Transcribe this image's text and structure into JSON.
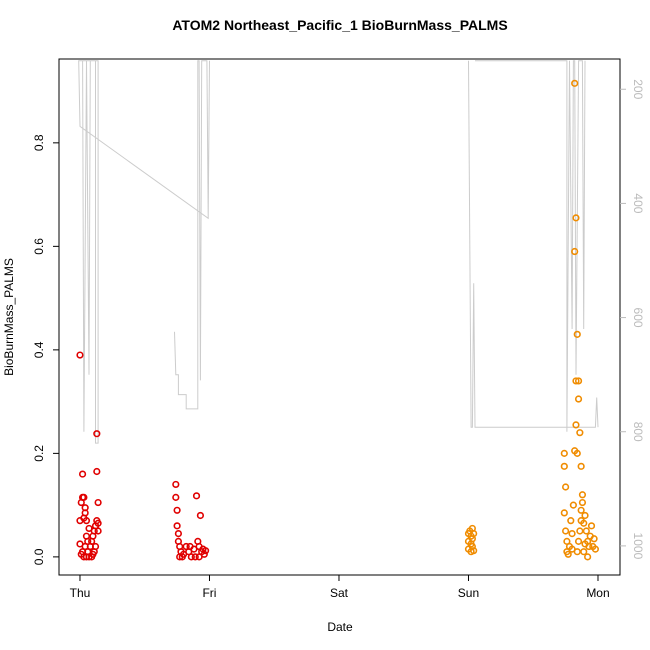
{
  "chart_data": {
    "type": "scatter",
    "title": "ATOM2 Northeast_Pacific_1 BioBurnMass_PALMS",
    "x_label": "Date",
    "y_label": "BioBurnMass_PALMS",
    "xlim": [
      -0.162,
      4.17
    ],
    "xticks": [
      {
        "value": 0,
        "label": "Thu"
      },
      {
        "value": 1,
        "label": "Fri"
      },
      {
        "value": 2,
        "label": "Sat"
      },
      {
        "value": 3,
        "label": "Sun"
      },
      {
        "value": 4,
        "label": "Mon"
      }
    ],
    "ylim": [
      -0.035,
      0.962
    ],
    "yticks": [
      {
        "value": 0,
        "label": "0.0"
      },
      0.2,
      0.4,
      0.6,
      0.8
    ],
    "y2lim": [
      1051,
      147
    ],
    "y2ticks": [
      200,
      400,
      600,
      800,
      1000
    ],
    "y2_color": "#bbbbbb",
    "series": [
      {
        "color": "#e00000",
        "x": [
          0.0,
          0.0,
          0.0,
          0.01,
          0.02,
          0.02,
          0.03,
          0.01,
          0.02,
          0.03,
          0.04,
          0.05,
          0.03,
          0.04,
          0.05,
          0.05,
          0.06,
          0.07,
          0.08,
          0.09,
          0.1,
          0.11,
          0.12,
          0.13,
          0.13,
          0.13,
          0.14,
          0.14,
          0.14,
          0.09,
          0.1,
          0.11,
          0.12,
          0.06,
          0.07,
          0.04,
          0.74,
          0.74,
          0.75,
          0.75,
          0.76,
          0.76,
          0.77,
          0.78,
          0.79,
          0.8,
          0.82,
          0.84,
          0.86,
          0.88,
          0.9,
          0.91,
          0.92,
          0.93,
          0.94,
          0.95,
          0.96,
          0.97,
          0.89,
          0.92,
          0.77,
          0.85
        ],
        "values": [
          0.39,
          0.07,
          0.025,
          0.105,
          0.16,
          0.115,
          0.115,
          0.005,
          0.01,
          0.075,
          0.085,
          0.07,
          0.0,
          0.02,
          0.04,
          0.0,
          0.01,
          0.0,
          0.02,
          0.03,
          0.04,
          0.05,
          0.06,
          0.07,
          0.238,
          0.165,
          0.105,
          0.065,
          0.05,
          0.0,
          0.005,
          0.01,
          0.02,
          0.03,
          0.055,
          0.095,
          0.14,
          0.115,
          0.09,
          0.06,
          0.045,
          0.03,
          0.02,
          0.01,
          0.0,
          0.005,
          0.02,
          0.01,
          0.0,
          0.015,
          0.118,
          0.03,
          0.02,
          0.08,
          0.01,
          0.015,
          0.005,
          0.012,
          0.0,
          0.0,
          0.0,
          0.02
        ]
      },
      {
        "color": "#f08c00",
        "x": [
          3.0,
          3.0,
          3.0,
          3.01,
          3.02,
          3.02,
          3.02,
          3.03,
          3.03,
          3.03,
          3.04,
          3.04,
          3.74,
          3.74,
          3.75,
          3.74,
          3.75,
          3.76,
          3.76,
          3.77,
          3.78,
          3.79,
          3.8,
          3.8,
          3.82,
          3.83,
          3.82,
          3.84,
          3.83,
          3.85,
          3.85,
          3.83,
          3.86,
          3.82,
          3.84,
          3.87,
          3.87,
          3.88,
          3.88,
          3.87,
          3.86,
          3.85,
          3.84,
          3.89,
          3.9,
          3.91,
          3.92,
          3.93,
          3.94,
          3.95,
          3.96,
          3.97,
          3.92,
          3.89,
          3.9,
          3.81,
          3.98
        ],
        "values": [
          0.045,
          0.03,
          0.015,
          0.05,
          0.04,
          0.025,
          0.01,
          0.055,
          0.035,
          0.02,
          0.045,
          0.012,
          0.2,
          0.175,
          0.135,
          0.085,
          0.05,
          0.03,
          0.01,
          0.005,
          0.02,
          0.07,
          0.045,
          0.015,
          0.915,
          0.655,
          0.59,
          0.43,
          0.34,
          0.34,
          0.305,
          0.255,
          0.24,
          0.205,
          0.2,
          0.175,
          0.09,
          0.12,
          0.105,
          0.07,
          0.05,
          0.03,
          0.01,
          0.065,
          0.08,
          0.05,
          0.03,
          0.02,
          0.04,
          0.06,
          0.02,
          0.035,
          0.0,
          0.01,
          0.025,
          0.1,
          0.015
        ]
      },
      {
        "type": "line",
        "axis": "y2",
        "color": "#cccccc",
        "x": [
          0.02,
          0.03,
          0.05,
          0.07,
          0.08,
          0.12,
          0.12,
          0.14,
          0.14,
          -0.01,
          0.0,
          0.99,
          1.0,
          null,
          0.73,
          0.74,
          0.76,
          0.76,
          0.82,
          0.82,
          0.91,
          0.91,
          0.92,
          0.93,
          0.94,
          0.98,
          0.99,
          null,
          3.0,
          3.02,
          3.03,
          3.04,
          3.05,
          3.98,
          3.99,
          4.0,
          null,
          3.05,
          3.7,
          3.76,
          3.76,
          3.78,
          3.8,
          3.81,
          3.82,
          3.83,
          3.85,
          3.88,
          3.89,
          3.9
        ],
        "values": [
          150,
          800,
          150,
          700,
          150,
          150,
          820,
          820,
          150,
          150,
          265,
          426,
          150,
          null,
          625,
          700,
          700,
          735,
          735,
          760,
          760,
          150,
          150,
          710,
          150,
          150,
          426,
          null,
          150,
          792,
          792,
          540,
          792,
          792,
          740,
          792,
          null,
          150,
          150,
          150,
          800,
          150,
          620,
          150,
          150,
          700,
          150,
          150,
          620,
          150
        ]
      }
    ]
  }
}
